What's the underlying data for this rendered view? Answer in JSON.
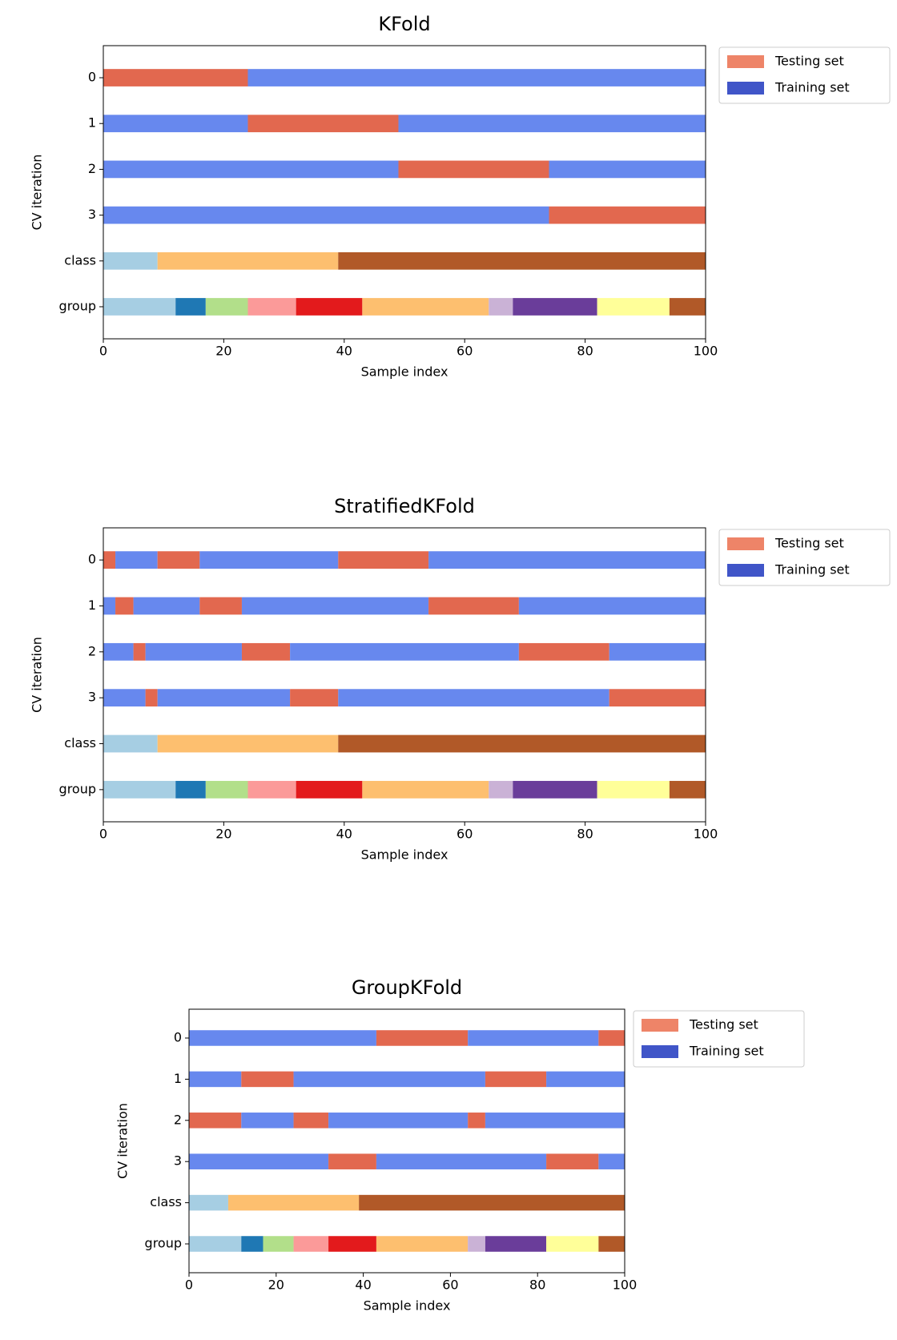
{
  "chart_data": [
    {
      "type": "broken_barh",
      "title": "KFold",
      "xlabel": "Sample index",
      "ylabel": "CV iteration",
      "xlim": [
        0,
        100
      ],
      "xticks": [
        0,
        20,
        40,
        60,
        80,
        100
      ],
      "categories": [
        "0",
        "1",
        "2",
        "3",
        "class",
        "group"
      ],
      "series": [
        {
          "name": "Testing set",
          "color": "#e2684f",
          "legend_color": "#ee8468"
        },
        {
          "name": "Training set",
          "color": "#6788ee",
          "legend_color": "#4055c8"
        }
      ],
      "rows": [
        {
          "edges": [
            0,
            24,
            100
          ],
          "kinds": [
            0,
            1
          ]
        },
        {
          "edges": [
            0,
            24,
            49,
            100
          ],
          "kinds": [
            1,
            0,
            1
          ]
        },
        {
          "edges": [
            0,
            49,
            74,
            100
          ],
          "kinds": [
            1,
            0,
            1
          ]
        },
        {
          "edges": [
            0,
            74,
            100
          ],
          "kinds": [
            1,
            0
          ]
        }
      ],
      "class_row": {
        "edges": [
          0,
          9,
          39,
          100
        ],
        "colors": [
          "#a6cee3",
          "#fdbf6f",
          "#b15928"
        ]
      },
      "group_row": {
        "edges": [
          0,
          12,
          17,
          24,
          32,
          43,
          64,
          68,
          82,
          94,
          100
        ],
        "colors": [
          "#a6cee3",
          "#1f78b4",
          "#b2df8a",
          "#fb9a99",
          "#e31a1c",
          "#fdbf6f",
          "#cab2d6",
          "#6a3d9a",
          "#ffff99",
          "#b15928"
        ]
      }
    },
    {
      "type": "broken_barh",
      "title": "StratifiedKFold",
      "xlabel": "Sample index",
      "ylabel": "CV iteration",
      "xlim": [
        0,
        100
      ],
      "xticks": [
        0,
        20,
        40,
        60,
        80,
        100
      ],
      "categories": [
        "0",
        "1",
        "2",
        "3",
        "class",
        "group"
      ],
      "series": [
        {
          "name": "Testing set",
          "color": "#e2684f",
          "legend_color": "#ee8468"
        },
        {
          "name": "Training set",
          "color": "#6788ee",
          "legend_color": "#4055c8"
        }
      ],
      "rows": [
        {
          "edges": [
            0,
            2,
            9,
            16,
            39,
            54,
            100
          ],
          "kinds": [
            0,
            1,
            0,
            1,
            0,
            1
          ]
        },
        {
          "edges": [
            0,
            2,
            5,
            16,
            23,
            54,
            69,
            100
          ],
          "kinds": [
            1,
            0,
            1,
            0,
            1,
            0,
            1
          ]
        },
        {
          "edges": [
            0,
            5,
            7,
            23,
            31,
            69,
            84,
            100
          ],
          "kinds": [
            1,
            0,
            1,
            0,
            1,
            0,
            1
          ]
        },
        {
          "edges": [
            0,
            7,
            9,
            31,
            39,
            84,
            100
          ],
          "kinds": [
            1,
            0,
            1,
            0,
            1,
            0
          ]
        }
      ],
      "class_row": {
        "edges": [
          0,
          9,
          39,
          100
        ],
        "colors": [
          "#a6cee3",
          "#fdbf6f",
          "#b15928"
        ]
      },
      "group_row": {
        "edges": [
          0,
          12,
          17,
          24,
          32,
          43,
          64,
          68,
          82,
          94,
          100
        ],
        "colors": [
          "#a6cee3",
          "#1f78b4",
          "#b2df8a",
          "#fb9a99",
          "#e31a1c",
          "#fdbf6f",
          "#cab2d6",
          "#6a3d9a",
          "#ffff99",
          "#b15928"
        ]
      }
    },
    {
      "type": "broken_barh",
      "title": "GroupKFold",
      "xlabel": "Sample index",
      "ylabel": "CV iteration",
      "xlim": [
        0,
        100
      ],
      "xticks": [
        0,
        20,
        40,
        60,
        80,
        100
      ],
      "categories": [
        "0",
        "1",
        "2",
        "3",
        "class",
        "group"
      ],
      "series": [
        {
          "name": "Testing set",
          "color": "#e2684f",
          "legend_color": "#ee8468"
        },
        {
          "name": "Training set",
          "color": "#6788ee",
          "legend_color": "#4055c8"
        }
      ],
      "rows": [
        {
          "edges": [
            0,
            43,
            64,
            94,
            100
          ],
          "kinds": [
            1,
            0,
            1,
            0
          ]
        },
        {
          "edges": [
            0,
            12,
            24,
            68,
            82,
            100
          ],
          "kinds": [
            1,
            0,
            1,
            0,
            1
          ]
        },
        {
          "edges": [
            0,
            12,
            24,
            32,
            64,
            68,
            100
          ],
          "kinds": [
            0,
            1,
            0,
            1,
            0,
            1
          ]
        },
        {
          "edges": [
            0,
            32,
            43,
            82,
            94,
            100
          ],
          "kinds": [
            1,
            0,
            1,
            0,
            1
          ]
        }
      ],
      "class_row": {
        "edges": [
          0,
          9,
          39,
          100
        ],
        "colors": [
          "#a6cee3",
          "#fdbf6f",
          "#b15928"
        ]
      },
      "group_row": {
        "edges": [
          0,
          12,
          17,
          24,
          32,
          43,
          64,
          68,
          82,
          94,
          100
        ],
        "colors": [
          "#a6cee3",
          "#1f78b4",
          "#b2df8a",
          "#fb9a99",
          "#e31a1c",
          "#fdbf6f",
          "#cab2d6",
          "#6a3d9a",
          "#ffff99",
          "#b15928"
        ]
      }
    }
  ]
}
